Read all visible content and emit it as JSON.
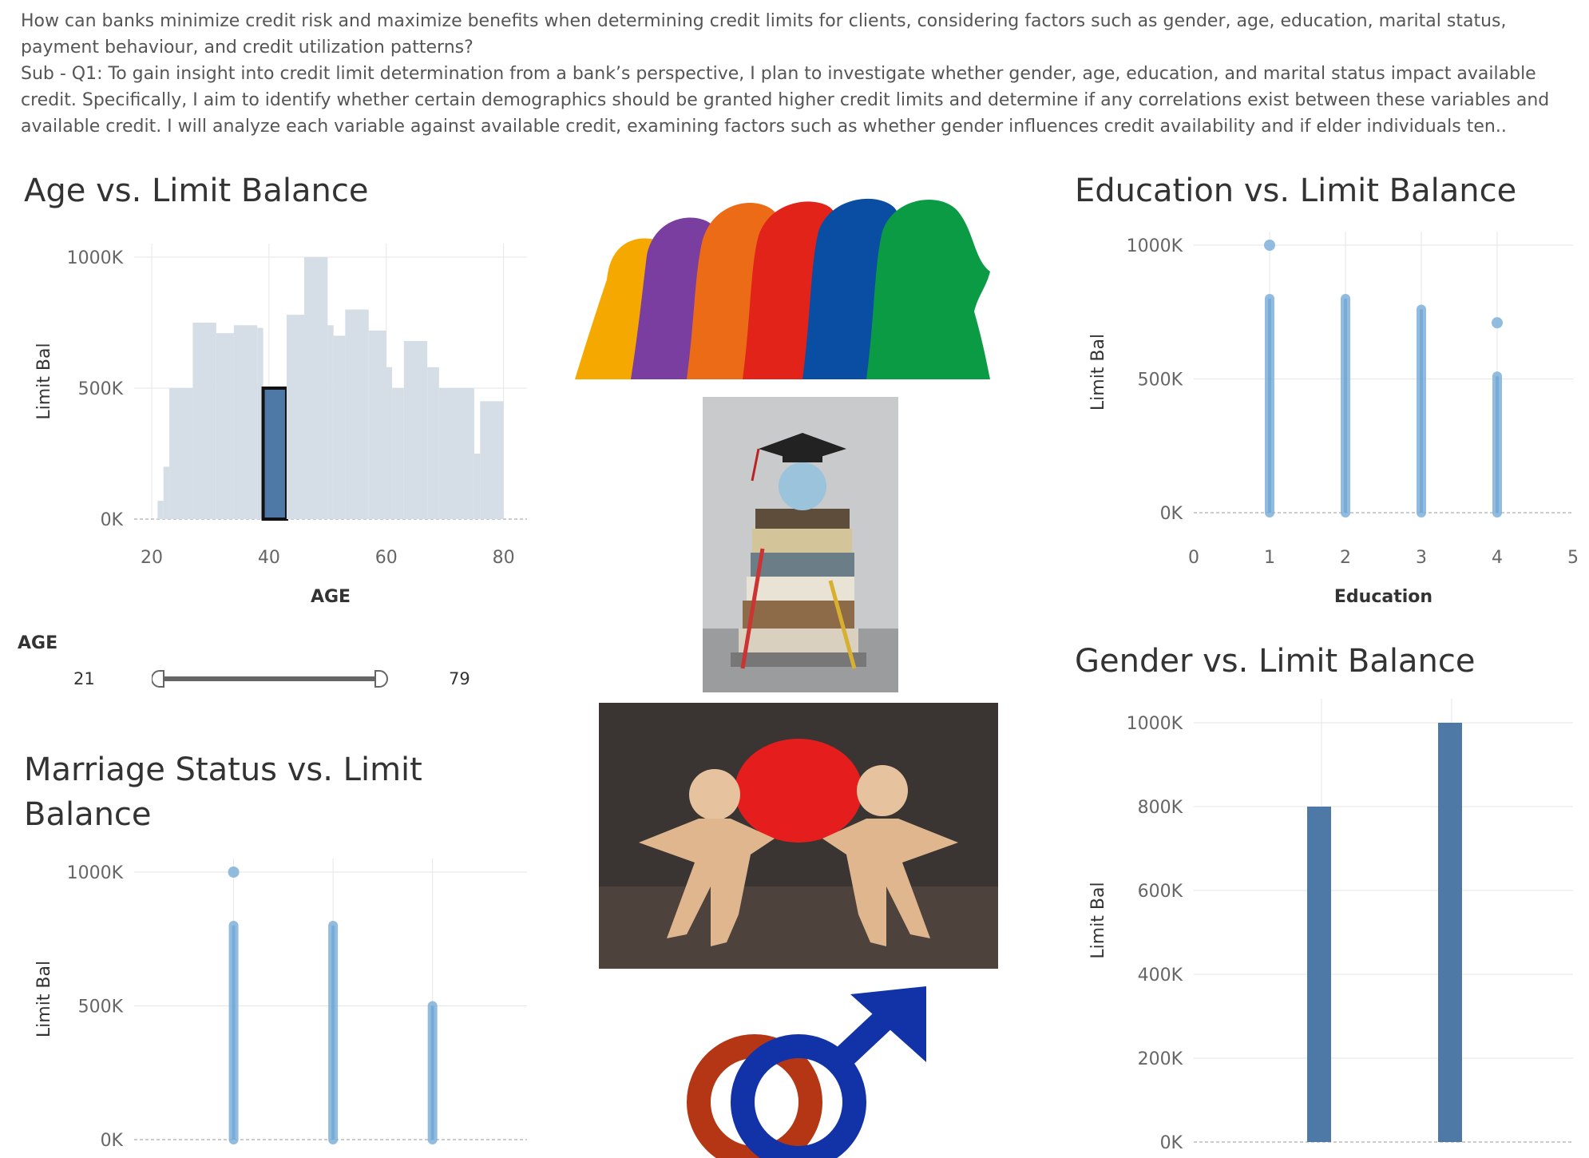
{
  "intro": {
    "question": "How can banks minimize credit risk and maximize benefits when determining credit limits for clients, considering factors such as gender, age, education, marital status, payment behaviour, and credit utilization patterns?",
    "subq1": "Sub - Q1:  To gain insight into credit limit determination from a bank’s perspective, I plan to investigate whether gender, age, education, and marital status impact available credit. Specifically, I aim to identify whether certain demographics should be granted higher credit limits and determine if any correlations exist between these variables and available credit. I will analyze each variable against available credit, examining factors such as whether gender influences credit availability and if elder individuals ten.."
  },
  "titles": {
    "age": "Age vs. Limit Balance",
    "education": "Education vs. Limit Balance",
    "marriage_line1": "Marriage Status vs. Limit",
    "marriage_line2": "Balance",
    "gender": "Gender vs. Limit Balance"
  },
  "age_filter": {
    "label": "AGE",
    "min": "21",
    "max": "79"
  },
  "colors": {
    "highlight": "#4e79a7",
    "muted": "#d5dde6",
    "dots": "#7fb0d9"
  },
  "chart_data": [
    {
      "id": "age",
      "type": "bar",
      "xlabel": "AGE",
      "ylabel": "Limit Bal",
      "xlim": [
        17,
        84
      ],
      "ylim": [
        0,
        1000000
      ],
      "xticks": [
        20,
        40,
        60,
        80
      ],
      "yticks": [
        "0K",
        "500K",
        "1000K"
      ],
      "bars": [
        {
          "x0": 21,
          "x1": 22,
          "value": 70000
        },
        {
          "x0": 22,
          "x1": 23,
          "value": 200000
        },
        {
          "x0": 23,
          "x1": 27,
          "value": 500000
        },
        {
          "x0": 27,
          "x1": 31,
          "value": 750000
        },
        {
          "x0": 31,
          "x1": 34,
          "value": 710000
        },
        {
          "x0": 34,
          "x1": 38,
          "value": 740000
        },
        {
          "x0": 38,
          "x1": 39,
          "value": 730000
        },
        {
          "x0": 39,
          "x1": 43,
          "value": 500000,
          "highlight": true
        },
        {
          "x0": 43,
          "x1": 46,
          "value": 780000
        },
        {
          "x0": 46,
          "x1": 50,
          "value": 1000000
        },
        {
          "x0": 50,
          "x1": 51,
          "value": 740000
        },
        {
          "x0": 51,
          "x1": 53,
          "value": 700000
        },
        {
          "x0": 53,
          "x1": 57,
          "value": 800000
        },
        {
          "x0": 57,
          "x1": 60,
          "value": 720000
        },
        {
          "x0": 60,
          "x1": 61,
          "value": 580000
        },
        {
          "x0": 61,
          "x1": 63,
          "value": 500000
        },
        {
          "x0": 63,
          "x1": 67,
          "value": 680000
        },
        {
          "x0": 67,
          "x1": 69,
          "value": 580000
        },
        {
          "x0": 69,
          "x1": 75,
          "value": 500000
        },
        {
          "x0": 75,
          "x1": 76,
          "value": 250000
        },
        {
          "x0": 76,
          "x1": 80,
          "value": 450000
        }
      ]
    },
    {
      "id": "education",
      "type": "scatter",
      "xlabel": "Education",
      "ylabel": "Limit Bal",
      "xlim": [
        0,
        5
      ],
      "ylim": [
        0,
        1000000
      ],
      "xticks": [
        0,
        1,
        2,
        3,
        4,
        5
      ],
      "yticks": [
        "0K",
        "500K",
        "1000K"
      ],
      "columns": [
        {
          "x": 1,
          "min": 0,
          "max": 800000,
          "outliers": [
            1000000
          ]
        },
        {
          "x": 2,
          "min": 0,
          "max": 800000,
          "outliers": []
        },
        {
          "x": 3,
          "min": 0,
          "max": 760000,
          "outliers": []
        },
        {
          "x": 4,
          "min": 0,
          "max": 510000,
          "outliers": [
            710000
          ]
        }
      ]
    },
    {
      "id": "marriage",
      "type": "scatter",
      "xlabel": "",
      "ylabel": "Limit Bal",
      "xlim": [
        0.0,
        3.95
      ],
      "ylim": [
        0,
        1000000
      ],
      "yticks": [
        "0K",
        "500K",
        "1000K"
      ],
      "columns": [
        {
          "x": 1,
          "min": 0,
          "max": 800000,
          "outliers": [
            1000000
          ]
        },
        {
          "x": 2,
          "min": 0,
          "max": 800000,
          "outliers": []
        },
        {
          "x": 3,
          "min": 0,
          "max": 500000,
          "outliers": []
        }
      ]
    },
    {
      "id": "gender",
      "type": "bar",
      "xlabel": "",
      "ylabel": "Limit Bal",
      "ylim": [
        0,
        1000000
      ],
      "yticks": [
        "0K",
        "200K",
        "400K",
        "600K",
        "800K",
        "1000K"
      ],
      "values": [
        800000,
        1000000
      ]
    }
  ]
}
